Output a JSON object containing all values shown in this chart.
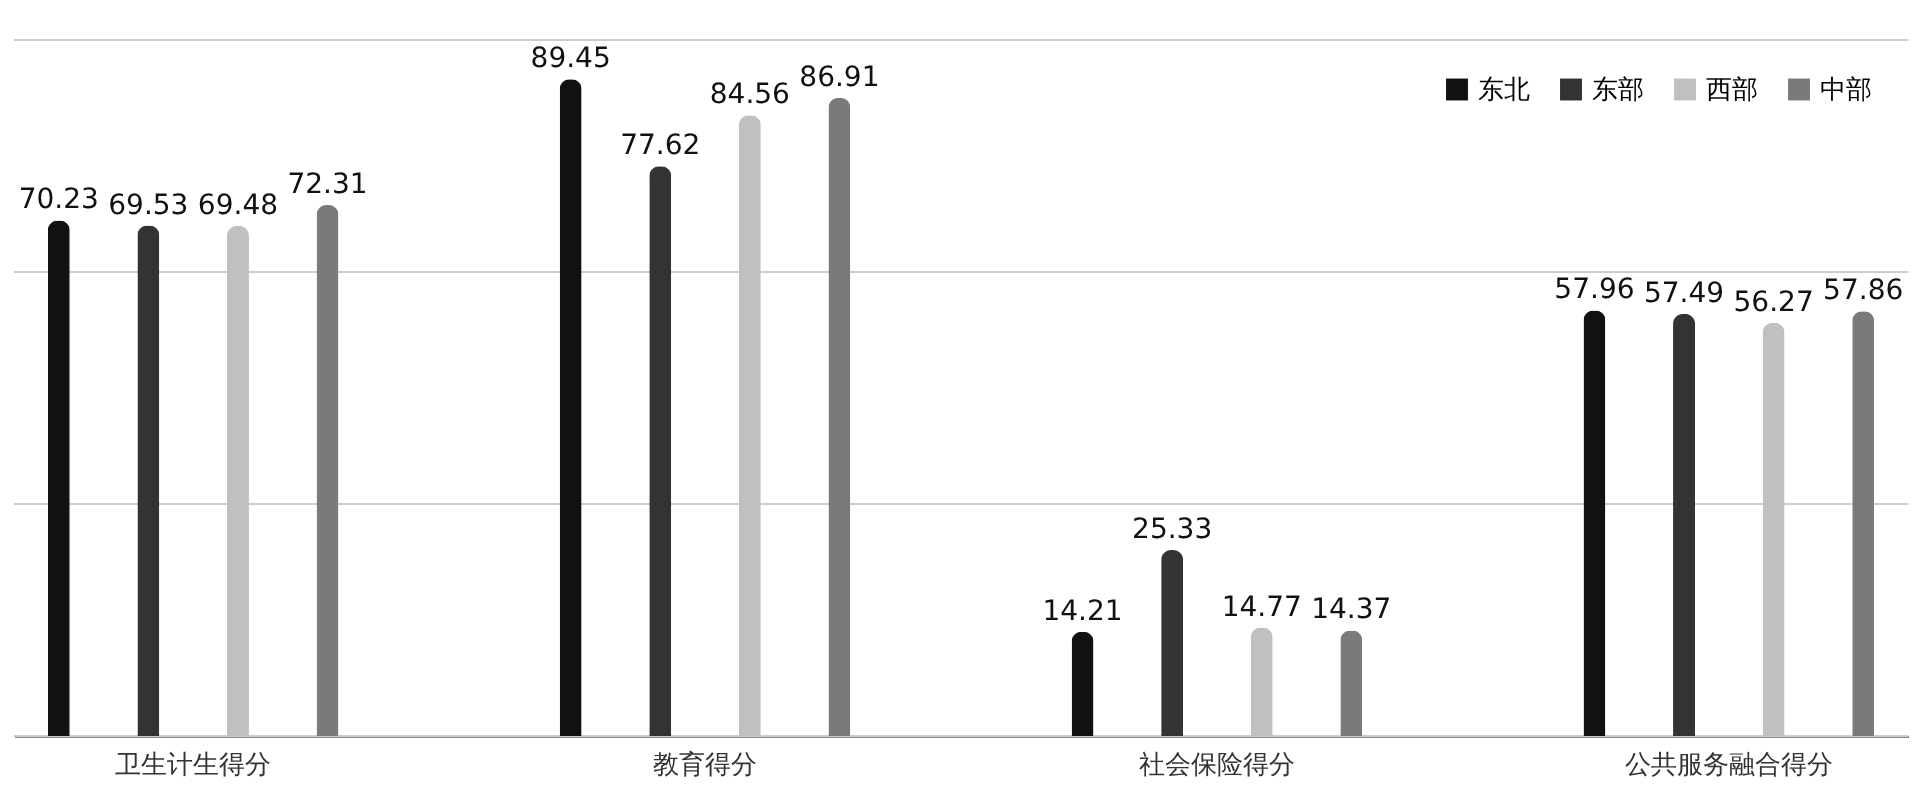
{
  "chart_data": {
    "type": "bar",
    "categories": [
      "卫生计生得分",
      "教育得分",
      "社会保险得分",
      "公共服务融合得分"
    ],
    "series": [
      {
        "name": "东北",
        "color": "#111111",
        "values": [
          70.23,
          89.45,
          14.21,
          57.96
        ]
      },
      {
        "name": "东部",
        "color": "#333333",
        "values": [
          69.53,
          77.62,
          25.33,
          57.49
        ]
      },
      {
        "name": "西部",
        "color": "#c0c0c0",
        "values": [
          69.48,
          84.56,
          14.77,
          56.27
        ]
      },
      {
        "name": "中部",
        "color": "#7a7a7a",
        "values": [
          72.31,
          86.91,
          14.37,
          57.86
        ]
      }
    ],
    "ylim": [
      0,
      94.8
    ],
    "yticks": [
      {
        "value": 0,
        "label": null
      },
      {
        "value": 31.6,
        "label": null
      },
      {
        "value": 63.2,
        "label": null
      },
      {
        "value": 94.8,
        "label": null
      }
    ],
    "grid": "y",
    "legend": "top right",
    "data_labels": true
  }
}
